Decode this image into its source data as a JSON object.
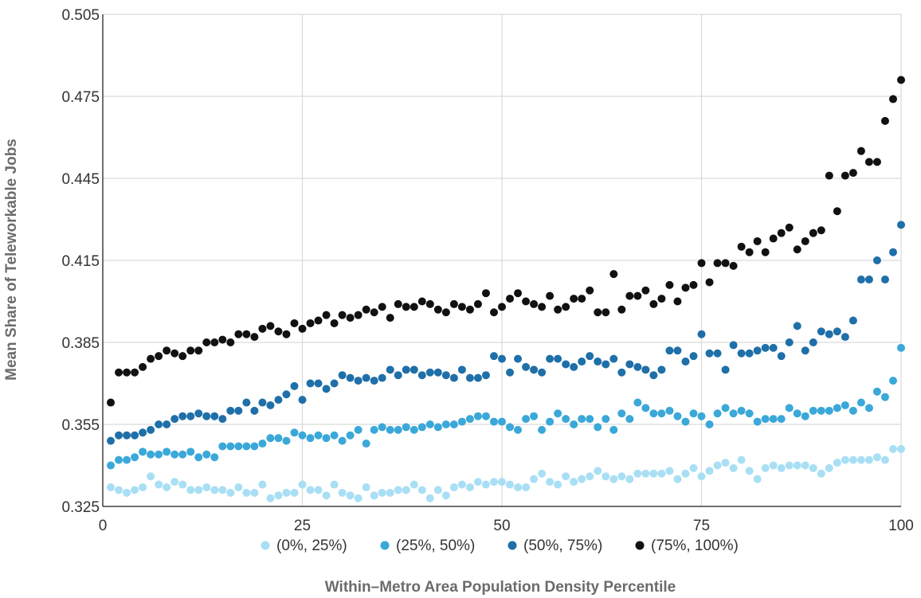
{
  "chart_data": {
    "type": "scatter",
    "xlabel": "Within–Metro Area Population Density Percentile",
    "ylabel": "Mean Share of Teleworkable Jobs",
    "xlim": [
      0,
      100
    ],
    "ylim": [
      0.325,
      0.505
    ],
    "x_ticks": [
      "0",
      "25",
      "50",
      "75",
      "100"
    ],
    "x_tick_values": [
      0,
      25,
      50,
      75,
      100
    ],
    "y_ticks": [
      "0.325",
      "0.355",
      "0.385",
      "0.415",
      "0.445",
      "0.475",
      "0.505"
    ],
    "y_tick_values": [
      0.325,
      0.355,
      0.385,
      0.415,
      0.445,
      0.475,
      0.505
    ],
    "grid": true,
    "legend_position": "bottom",
    "series": [
      {
        "name": "(0%, 25%)",
        "color": "#a9dff4",
        "x": [
          1,
          2,
          3,
          4,
          5,
          6,
          7,
          8,
          9,
          10,
          11,
          12,
          13,
          14,
          15,
          16,
          17,
          18,
          19,
          20,
          21,
          22,
          23,
          24,
          25,
          26,
          27,
          28,
          29,
          30,
          31,
          32,
          33,
          34,
          35,
          36,
          37,
          38,
          39,
          40,
          41,
          42,
          43,
          44,
          45,
          46,
          47,
          48,
          49,
          50,
          51,
          52,
          53,
          54,
          55,
          56,
          57,
          58,
          59,
          60,
          61,
          62,
          63,
          64,
          65,
          66,
          67,
          68,
          69,
          70,
          71,
          72,
          73,
          74,
          75,
          76,
          77,
          78,
          79,
          80,
          81,
          82,
          83,
          84,
          85,
          86,
          87,
          88,
          89,
          90,
          91,
          92,
          93,
          94,
          95,
          96,
          97,
          98,
          99,
          100
        ],
        "values": [
          0.332,
          0.331,
          0.33,
          0.331,
          0.332,
          0.336,
          0.333,
          0.332,
          0.334,
          0.333,
          0.331,
          0.331,
          0.332,
          0.331,
          0.331,
          0.33,
          0.332,
          0.33,
          0.33,
          0.333,
          0.328,
          0.329,
          0.33,
          0.33,
          0.333,
          0.331,
          0.331,
          0.329,
          0.333,
          0.33,
          0.329,
          0.328,
          0.332,
          0.329,
          0.33,
          0.33,
          0.331,
          0.331,
          0.333,
          0.331,
          0.328,
          0.331,
          0.329,
          0.332,
          0.333,
          0.332,
          0.334,
          0.333,
          0.334,
          0.334,
          0.333,
          0.332,
          0.332,
          0.335,
          0.337,
          0.334,
          0.333,
          0.336,
          0.334,
          0.335,
          0.336,
          0.338,
          0.336,
          0.335,
          0.336,
          0.335,
          0.337,
          0.337,
          0.337,
          0.337,
          0.338,
          0.335,
          0.337,
          0.339,
          0.336,
          0.338,
          0.34,
          0.341,
          0.339,
          0.342,
          0.338,
          0.335,
          0.339,
          0.34,
          0.339,
          0.34,
          0.34,
          0.34,
          0.339,
          0.337,
          0.339,
          0.341,
          0.342,
          0.342,
          0.342,
          0.342,
          0.343,
          0.342,
          0.346,
          0.346
        ]
      },
      {
        "name": "(25%, 50%)",
        "color": "#3aa8d8",
        "x": [
          1,
          2,
          3,
          4,
          5,
          6,
          7,
          8,
          9,
          10,
          11,
          12,
          13,
          14,
          15,
          16,
          17,
          18,
          19,
          20,
          21,
          22,
          23,
          24,
          25,
          26,
          27,
          28,
          29,
          30,
          31,
          32,
          33,
          34,
          35,
          36,
          37,
          38,
          39,
          40,
          41,
          42,
          43,
          44,
          45,
          46,
          47,
          48,
          49,
          50,
          51,
          52,
          53,
          54,
          55,
          56,
          57,
          58,
          59,
          60,
          61,
          62,
          63,
          64,
          65,
          66,
          67,
          68,
          69,
          70,
          71,
          72,
          73,
          74,
          75,
          76,
          77,
          78,
          79,
          80,
          81,
          82,
          83,
          84,
          85,
          86,
          87,
          88,
          89,
          90,
          91,
          92,
          93,
          94,
          95,
          96,
          97,
          98,
          99,
          100
        ],
        "values": [
          0.34,
          0.342,
          0.342,
          0.343,
          0.345,
          0.344,
          0.344,
          0.345,
          0.344,
          0.344,
          0.345,
          0.343,
          0.344,
          0.343,
          0.347,
          0.347,
          0.347,
          0.347,
          0.347,
          0.348,
          0.35,
          0.35,
          0.349,
          0.352,
          0.351,
          0.35,
          0.351,
          0.35,
          0.351,
          0.349,
          0.351,
          0.353,
          0.348,
          0.353,
          0.354,
          0.353,
          0.353,
          0.354,
          0.353,
          0.354,
          0.355,
          0.354,
          0.355,
          0.355,
          0.356,
          0.357,
          0.358,
          0.358,
          0.356,
          0.356,
          0.354,
          0.353,
          0.357,
          0.358,
          0.353,
          0.356,
          0.359,
          0.357,
          0.355,
          0.357,
          0.357,
          0.354,
          0.357,
          0.353,
          0.359,
          0.357,
          0.363,
          0.361,
          0.359,
          0.359,
          0.36,
          0.358,
          0.356,
          0.359,
          0.358,
          0.355,
          0.359,
          0.361,
          0.359,
          0.36,
          0.359,
          0.356,
          0.357,
          0.357,
          0.357,
          0.361,
          0.359,
          0.358,
          0.36,
          0.36,
          0.36,
          0.361,
          0.362,
          0.36,
          0.363,
          0.361,
          0.367,
          0.365,
          0.371,
          0.383
        ]
      },
      {
        "name": "(50%, 75%)",
        "color": "#1f6fa8",
        "x": [
          1,
          2,
          3,
          4,
          5,
          6,
          7,
          8,
          9,
          10,
          11,
          12,
          13,
          14,
          15,
          16,
          17,
          18,
          19,
          20,
          21,
          22,
          23,
          24,
          25,
          26,
          27,
          28,
          29,
          30,
          31,
          32,
          33,
          34,
          35,
          36,
          37,
          38,
          39,
          40,
          41,
          42,
          43,
          44,
          45,
          46,
          47,
          48,
          49,
          50,
          51,
          52,
          53,
          54,
          55,
          56,
          57,
          58,
          59,
          60,
          61,
          62,
          63,
          64,
          65,
          66,
          67,
          68,
          69,
          70,
          71,
          72,
          73,
          74,
          75,
          76,
          77,
          78,
          79,
          80,
          81,
          82,
          83,
          84,
          85,
          86,
          87,
          88,
          89,
          90,
          91,
          92,
          93,
          94,
          95,
          96,
          97,
          98,
          99,
          100
        ],
        "values": [
          0.349,
          0.351,
          0.351,
          0.351,
          0.352,
          0.353,
          0.355,
          0.355,
          0.357,
          0.358,
          0.358,
          0.359,
          0.358,
          0.358,
          0.357,
          0.36,
          0.36,
          0.363,
          0.36,
          0.363,
          0.362,
          0.364,
          0.366,
          0.369,
          0.364,
          0.37,
          0.37,
          0.368,
          0.37,
          0.373,
          0.372,
          0.371,
          0.372,
          0.371,
          0.372,
          0.375,
          0.373,
          0.375,
          0.375,
          0.373,
          0.374,
          0.374,
          0.373,
          0.372,
          0.375,
          0.372,
          0.372,
          0.373,
          0.38,
          0.379,
          0.374,
          0.379,
          0.376,
          0.375,
          0.374,
          0.379,
          0.379,
          0.377,
          0.376,
          0.378,
          0.38,
          0.378,
          0.377,
          0.379,
          0.374,
          0.377,
          0.376,
          0.375,
          0.373,
          0.375,
          0.382,
          0.382,
          0.378,
          0.38,
          0.388,
          0.381,
          0.381,
          0.375,
          0.384,
          0.381,
          0.381,
          0.382,
          0.383,
          0.383,
          0.38,
          0.385,
          0.391,
          0.382,
          0.385,
          0.389,
          0.388,
          0.389,
          0.387,
          0.393,
          0.408,
          0.408,
          0.415,
          0.408,
          0.418,
          0.428
        ]
      },
      {
        "name": "(75%, 100%)",
        "color": "#111111",
        "x": [
          1,
          2,
          3,
          4,
          5,
          6,
          7,
          8,
          9,
          10,
          11,
          12,
          13,
          14,
          15,
          16,
          17,
          18,
          19,
          20,
          21,
          22,
          23,
          24,
          25,
          26,
          27,
          28,
          29,
          30,
          31,
          32,
          33,
          34,
          35,
          36,
          37,
          38,
          39,
          40,
          41,
          42,
          43,
          44,
          45,
          46,
          47,
          48,
          49,
          50,
          51,
          52,
          53,
          54,
          55,
          56,
          57,
          58,
          59,
          60,
          61,
          62,
          63,
          64,
          65,
          66,
          67,
          68,
          69,
          70,
          71,
          72,
          73,
          74,
          75,
          76,
          77,
          78,
          79,
          80,
          81,
          82,
          83,
          84,
          85,
          86,
          87,
          88,
          89,
          90,
          91,
          92,
          93,
          94,
          95,
          96,
          97,
          98,
          99,
          100
        ],
        "values": [
          0.363,
          0.374,
          0.374,
          0.374,
          0.376,
          0.379,
          0.38,
          0.382,
          0.381,
          0.38,
          0.382,
          0.382,
          0.385,
          0.385,
          0.386,
          0.385,
          0.388,
          0.388,
          0.387,
          0.39,
          0.391,
          0.389,
          0.388,
          0.392,
          0.39,
          0.392,
          0.393,
          0.395,
          0.392,
          0.395,
          0.394,
          0.395,
          0.397,
          0.396,
          0.398,
          0.394,
          0.399,
          0.398,
          0.398,
          0.4,
          0.399,
          0.397,
          0.396,
          0.399,
          0.398,
          0.397,
          0.399,
          0.403,
          0.396,
          0.398,
          0.401,
          0.403,
          0.4,
          0.399,
          0.398,
          0.402,
          0.397,
          0.398,
          0.401,
          0.401,
          0.404,
          0.396,
          0.396,
          0.41,
          0.397,
          0.402,
          0.402,
          0.404,
          0.399,
          0.401,
          0.406,
          0.4,
          0.405,
          0.406,
          0.414,
          0.407,
          0.414,
          0.414,
          0.413,
          0.42,
          0.418,
          0.422,
          0.418,
          0.423,
          0.425,
          0.427,
          0.419,
          0.422,
          0.425,
          0.426,
          0.446,
          0.433,
          0.446,
          0.447,
          0.455,
          0.451,
          0.451,
          0.466,
          0.474,
          0.481
        ]
      }
    ]
  }
}
